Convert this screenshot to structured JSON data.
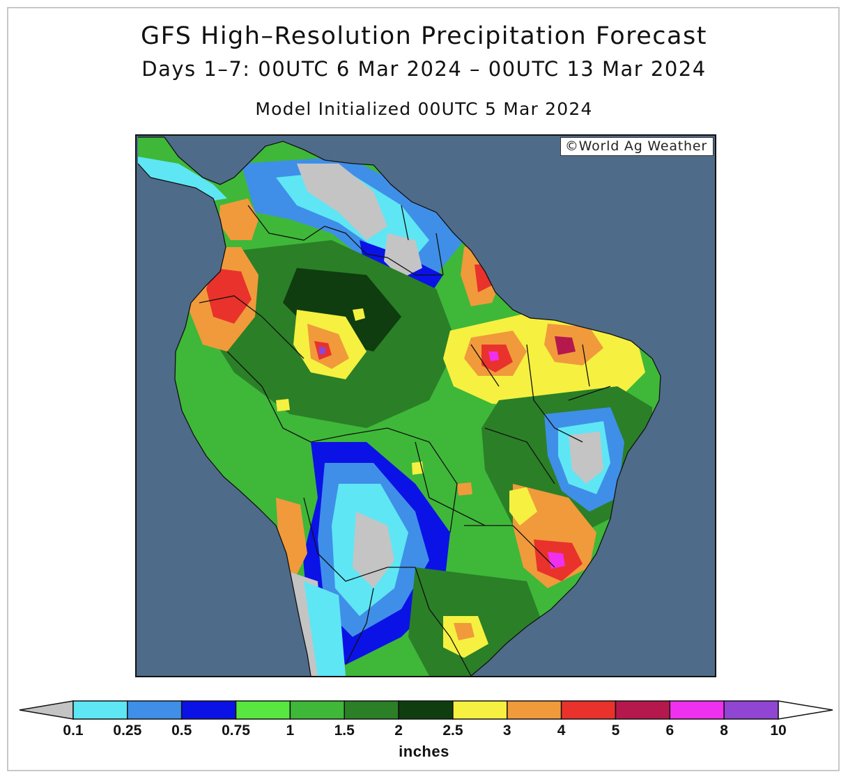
{
  "title": "GFS High–Resolution Precipitation Forecast",
  "subtitle": "Days 1–7: 00UTC 6 Mar 2024 – 00UTC 13 Mar 2024",
  "init_line": "Model Initialized 00UTC 5 Mar 2024",
  "credit": "©World Ag Weather",
  "colorbar": {
    "units_label": "inches",
    "low_end_color": "#c4c4c4",
    "high_end_color": "#ffffff",
    "ticks": [
      "0.1",
      "0.25",
      "0.5",
      "0.75",
      "1",
      "1.5",
      "2",
      "2.5",
      "3",
      "4",
      "5",
      "6",
      "8",
      "10"
    ],
    "bins": [
      {
        "from": "0.1",
        "to": "0.25",
        "color": "#5fe6f5"
      },
      {
        "from": "0.25",
        "to": "0.5",
        "color": "#3f8fe8"
      },
      {
        "from": "0.5",
        "to": "0.75",
        "color": "#0a12e6"
      },
      {
        "from": "0.75",
        "to": "1",
        "color": "#58e640"
      },
      {
        "from": "1",
        "to": "1.5",
        "color": "#3fb83a"
      },
      {
        "from": "1.5",
        "to": "2",
        "color": "#2a7f27"
      },
      {
        "from": "2",
        "to": "2.5",
        "color": "#0f3d10"
      },
      {
        "from": "2.5",
        "to": "3",
        "color": "#f6f141"
      },
      {
        "from": "3",
        "to": "4",
        "color": "#f09a3c"
      },
      {
        "from": "4",
        "to": "5",
        "color": "#e8322b"
      },
      {
        "from": "5",
        "to": "6",
        "color": "#b5184c"
      },
      {
        "from": "6",
        "to": "8",
        "color": "#f030ef"
      },
      {
        "from": "8",
        "to": "10",
        "color": "#9046d2"
      }
    ]
  },
  "map": {
    "region": "South America",
    "ocean_color": "#4f6b8a",
    "dry_color": "#c4c4c4"
  }
}
